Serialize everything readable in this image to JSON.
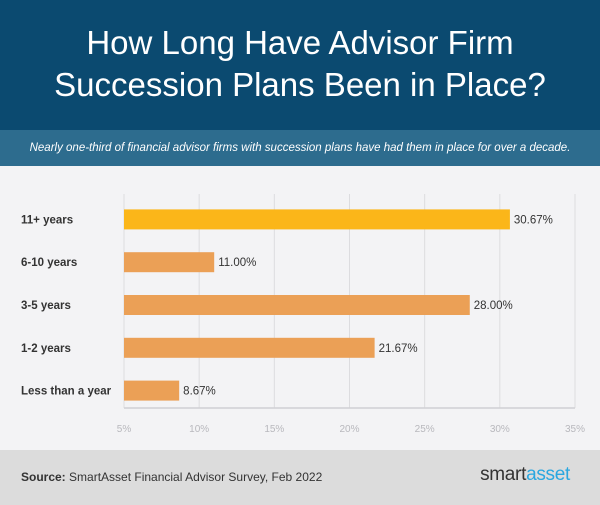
{
  "header": {
    "title_line1": "How Long Have Advisor Firm",
    "title_line2": "Succession Plans Been in Place?",
    "subtitle": "Nearly one-third of financial advisor firms with succession plans have had them in place for over a decade."
  },
  "chart_data": {
    "type": "bar",
    "orientation": "horizontal",
    "categories": [
      "11+ years",
      "6-10 years",
      "3-5 years",
      "1-2 years",
      "Less than a year"
    ],
    "values": [
      30.67,
      11.0,
      28.0,
      21.67,
      8.67
    ],
    "data_labels": [
      "30.67%",
      "11.00%",
      "28.00%",
      "21.67%",
      "8.67%"
    ],
    "xlim": [
      5,
      35
    ],
    "xticks": [
      "5%",
      "10%",
      "15%",
      "20%",
      "25%",
      "30%",
      "35%"
    ],
    "grid": true,
    "colors": {
      "highlight": "#fbb619",
      "default": "#eba056"
    },
    "highlight_index": 0
  },
  "footer": {
    "source_label": "Source:",
    "source_text": " SmartAsset Financial Advisor Survey, Feb 2022",
    "logo_part1": "smart",
    "logo_part2": "asset"
  }
}
